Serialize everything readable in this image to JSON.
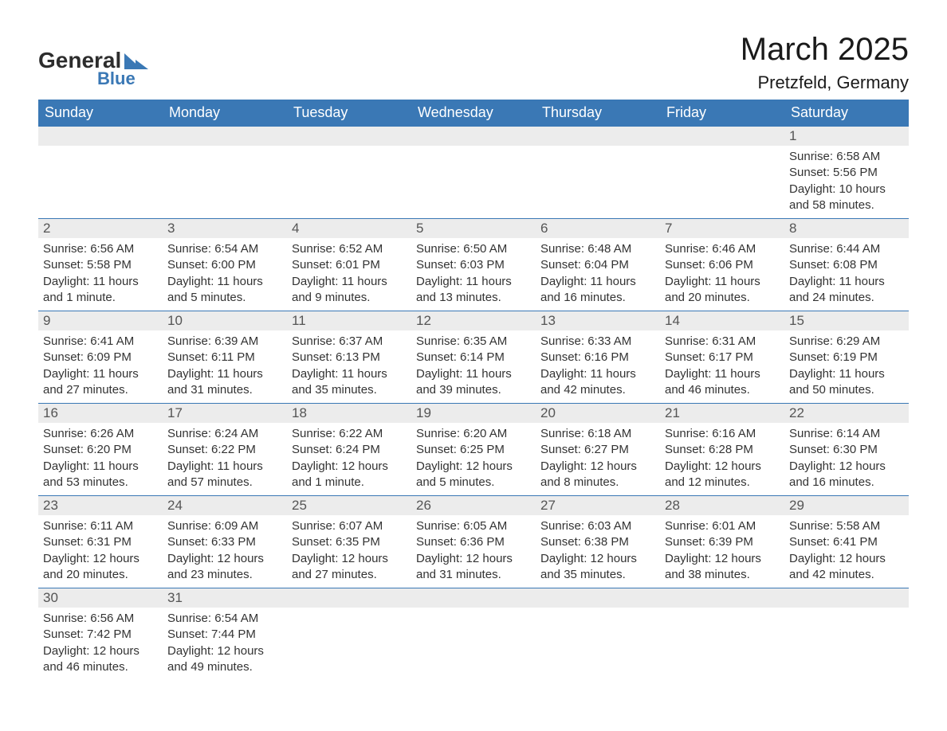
{
  "logo": {
    "text1": "General",
    "text2": "Blue"
  },
  "title": "March 2025",
  "location": "Pretzfeld, Germany",
  "colors": {
    "header_bg": "#3a78b5",
    "header_fg": "#ffffff",
    "daynum_bg": "#ececec",
    "daynum_fg": "#555555",
    "row_border": "#3a78b5",
    "body_text": "#333333"
  },
  "weekdays": [
    "Sunday",
    "Monday",
    "Tuesday",
    "Wednesday",
    "Thursday",
    "Friday",
    "Saturday"
  ],
  "weeks": [
    {
      "days": [
        null,
        null,
        null,
        null,
        null,
        null,
        {
          "n": "1",
          "sr": "6:58 AM",
          "ss": "5:56 PM",
          "dl": "10 hours and 58 minutes."
        }
      ]
    },
    {
      "days": [
        {
          "n": "2",
          "sr": "6:56 AM",
          "ss": "5:58 PM",
          "dl": "11 hours and 1 minute."
        },
        {
          "n": "3",
          "sr": "6:54 AM",
          "ss": "6:00 PM",
          "dl": "11 hours and 5 minutes."
        },
        {
          "n": "4",
          "sr": "6:52 AM",
          "ss": "6:01 PM",
          "dl": "11 hours and 9 minutes."
        },
        {
          "n": "5",
          "sr": "6:50 AM",
          "ss": "6:03 PM",
          "dl": "11 hours and 13 minutes."
        },
        {
          "n": "6",
          "sr": "6:48 AM",
          "ss": "6:04 PM",
          "dl": "11 hours and 16 minutes."
        },
        {
          "n": "7",
          "sr": "6:46 AM",
          "ss": "6:06 PM",
          "dl": "11 hours and 20 minutes."
        },
        {
          "n": "8",
          "sr": "6:44 AM",
          "ss": "6:08 PM",
          "dl": "11 hours and 24 minutes."
        }
      ]
    },
    {
      "days": [
        {
          "n": "9",
          "sr": "6:41 AM",
          "ss": "6:09 PM",
          "dl": "11 hours and 27 minutes."
        },
        {
          "n": "10",
          "sr": "6:39 AM",
          "ss": "6:11 PM",
          "dl": "11 hours and 31 minutes."
        },
        {
          "n": "11",
          "sr": "6:37 AM",
          "ss": "6:13 PM",
          "dl": "11 hours and 35 minutes."
        },
        {
          "n": "12",
          "sr": "6:35 AM",
          "ss": "6:14 PM",
          "dl": "11 hours and 39 minutes."
        },
        {
          "n": "13",
          "sr": "6:33 AM",
          "ss": "6:16 PM",
          "dl": "11 hours and 42 minutes."
        },
        {
          "n": "14",
          "sr": "6:31 AM",
          "ss": "6:17 PM",
          "dl": "11 hours and 46 minutes."
        },
        {
          "n": "15",
          "sr": "6:29 AM",
          "ss": "6:19 PM",
          "dl": "11 hours and 50 minutes."
        }
      ]
    },
    {
      "days": [
        {
          "n": "16",
          "sr": "6:26 AM",
          "ss": "6:20 PM",
          "dl": "11 hours and 53 minutes."
        },
        {
          "n": "17",
          "sr": "6:24 AM",
          "ss": "6:22 PM",
          "dl": "11 hours and 57 minutes."
        },
        {
          "n": "18",
          "sr": "6:22 AM",
          "ss": "6:24 PM",
          "dl": "12 hours and 1 minute."
        },
        {
          "n": "19",
          "sr": "6:20 AM",
          "ss": "6:25 PM",
          "dl": "12 hours and 5 minutes."
        },
        {
          "n": "20",
          "sr": "6:18 AM",
          "ss": "6:27 PM",
          "dl": "12 hours and 8 minutes."
        },
        {
          "n": "21",
          "sr": "6:16 AM",
          "ss": "6:28 PM",
          "dl": "12 hours and 12 minutes."
        },
        {
          "n": "22",
          "sr": "6:14 AM",
          "ss": "6:30 PM",
          "dl": "12 hours and 16 minutes."
        }
      ]
    },
    {
      "days": [
        {
          "n": "23",
          "sr": "6:11 AM",
          "ss": "6:31 PM",
          "dl": "12 hours and 20 minutes."
        },
        {
          "n": "24",
          "sr": "6:09 AM",
          "ss": "6:33 PM",
          "dl": "12 hours and 23 minutes."
        },
        {
          "n": "25",
          "sr": "6:07 AM",
          "ss": "6:35 PM",
          "dl": "12 hours and 27 minutes."
        },
        {
          "n": "26",
          "sr": "6:05 AM",
          "ss": "6:36 PM",
          "dl": "12 hours and 31 minutes."
        },
        {
          "n": "27",
          "sr": "6:03 AM",
          "ss": "6:38 PM",
          "dl": "12 hours and 35 minutes."
        },
        {
          "n": "28",
          "sr": "6:01 AM",
          "ss": "6:39 PM",
          "dl": "12 hours and 38 minutes."
        },
        {
          "n": "29",
          "sr": "5:58 AM",
          "ss": "6:41 PM",
          "dl": "12 hours and 42 minutes."
        }
      ]
    },
    {
      "days": [
        {
          "n": "30",
          "sr": "6:56 AM",
          "ss": "7:42 PM",
          "dl": "12 hours and 46 minutes."
        },
        {
          "n": "31",
          "sr": "6:54 AM",
          "ss": "7:44 PM",
          "dl": "12 hours and 49 minutes."
        },
        null,
        null,
        null,
        null,
        null
      ]
    }
  ],
  "labels": {
    "sunrise": "Sunrise: ",
    "sunset": "Sunset: ",
    "daylight": "Daylight: "
  }
}
